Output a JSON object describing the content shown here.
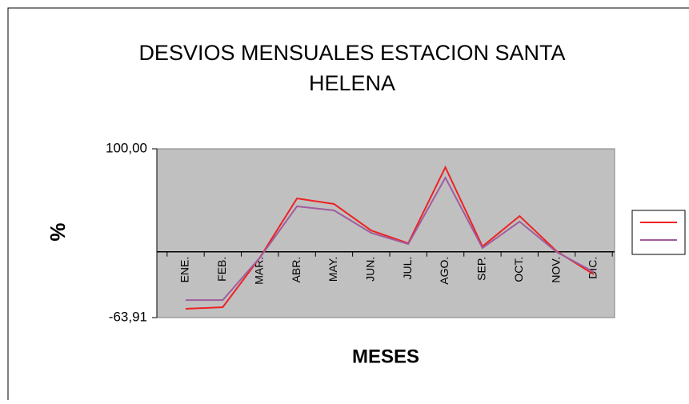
{
  "chart_data": {
    "type": "line",
    "title": [
      "DESVIOS  MENSUALES ESTACION SANTA",
      "HELENA"
    ],
    "y_label": "%",
    "x_label": "MESES",
    "categories": [
      "ENE.",
      "FEB.",
      "MAR.",
      "ABR.",
      "MAY.",
      "JUN.",
      "JUL.",
      "AGO.",
      "SEP.",
      "OCT.",
      "NOV.",
      "DIC."
    ],
    "series": [
      {
        "color": "#ee2222",
        "values": [
          -55.4,
          -53.8,
          -5.7,
          51.8,
          46.4,
          20.7,
          8.3,
          82.1,
          5.2,
          34.7,
          0.5,
          -22
        ]
      },
      {
        "color": "#a05c9c",
        "values": [
          -46.9,
          -46.9,
          -5.7,
          44.1,
          40.2,
          18.4,
          7.5,
          72,
          3.7,
          29.3,
          -0.2,
          -19.6
        ]
      }
    ],
    "ylim": [
      -63.91,
      100
    ],
    "yticks": [
      {
        "value": 100,
        "label": "100,00"
      },
      {
        "value": -63.91,
        "label": "-63,91"
      }
    ],
    "legend": "right"
  }
}
